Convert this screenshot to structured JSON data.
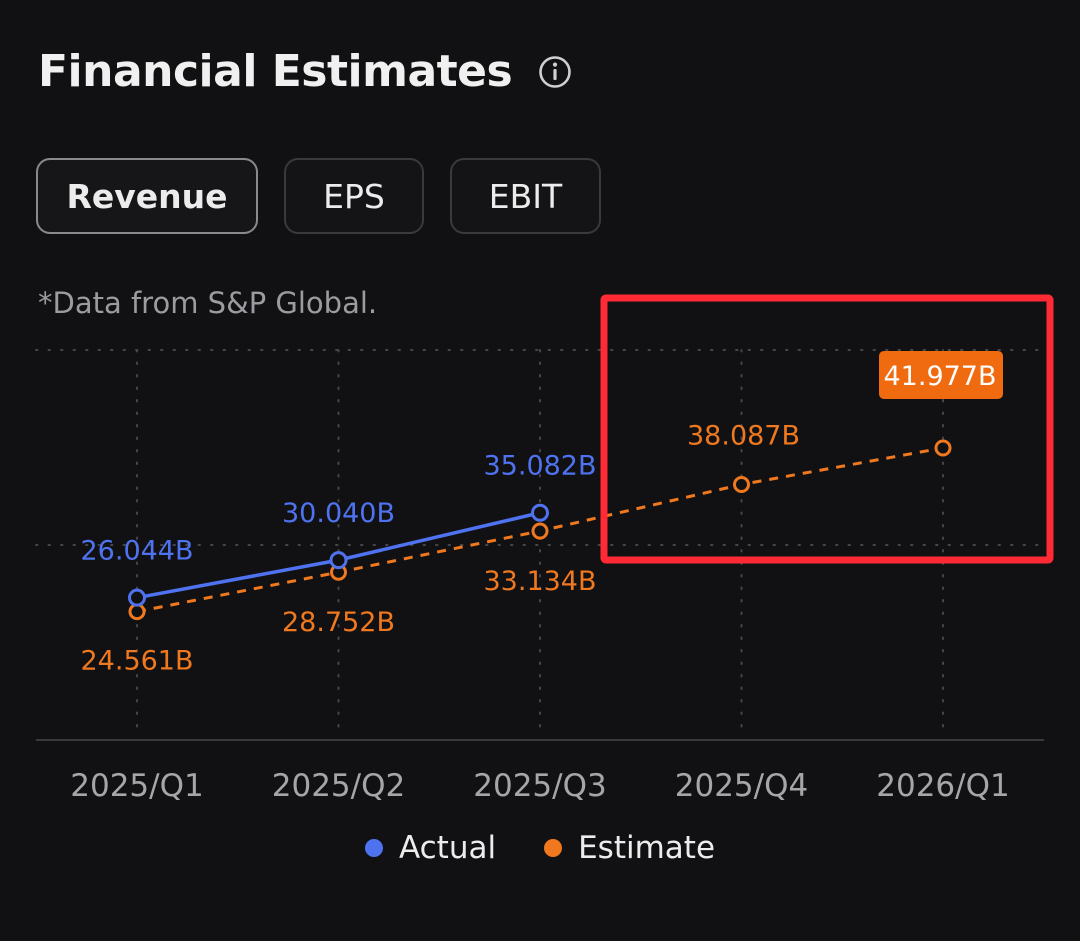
{
  "header": {
    "title": "Financial Estimates",
    "info_icon": "info-icon"
  },
  "tabs": [
    {
      "label": "Revenue",
      "active": true
    },
    {
      "label": "EPS",
      "active": false
    },
    {
      "label": "EBIT",
      "active": false
    }
  ],
  "source_note": "*Data from S&P Global.",
  "colors": {
    "actual": "#4f73f0",
    "estimate": "#f0781e",
    "highlight_box": "#ff2a34",
    "tooltip_bg": "#f06a10"
  },
  "chart_data": {
    "type": "line",
    "title": "Financial Estimates",
    "categories": [
      "2025/Q1",
      "2025/Q2",
      "2025/Q3",
      "2025/Q4",
      "2026/Q1"
    ],
    "series": [
      {
        "name": "Actual",
        "values": [
          26.044,
          30.04,
          35.082,
          null,
          null
        ],
        "labels": [
          "26.044B",
          "30.040B",
          "35.082B",
          null,
          null
        ]
      },
      {
        "name": "Estimate",
        "values": [
          24.561,
          28.752,
          33.134,
          38.087,
          41.977
        ],
        "labels": [
          "24.561B",
          "28.752B",
          "33.134B",
          "38.087B",
          "41.977B"
        ]
      }
    ],
    "highlighted_label": "41.977B",
    "xlabel": "",
    "ylabel": "",
    "unit": "B",
    "ylim": [
      10.9,
      52.4
    ],
    "grid": true,
    "legend": "bottom"
  },
  "legend": {
    "actual": "Actual",
    "estimate": "Estimate"
  }
}
